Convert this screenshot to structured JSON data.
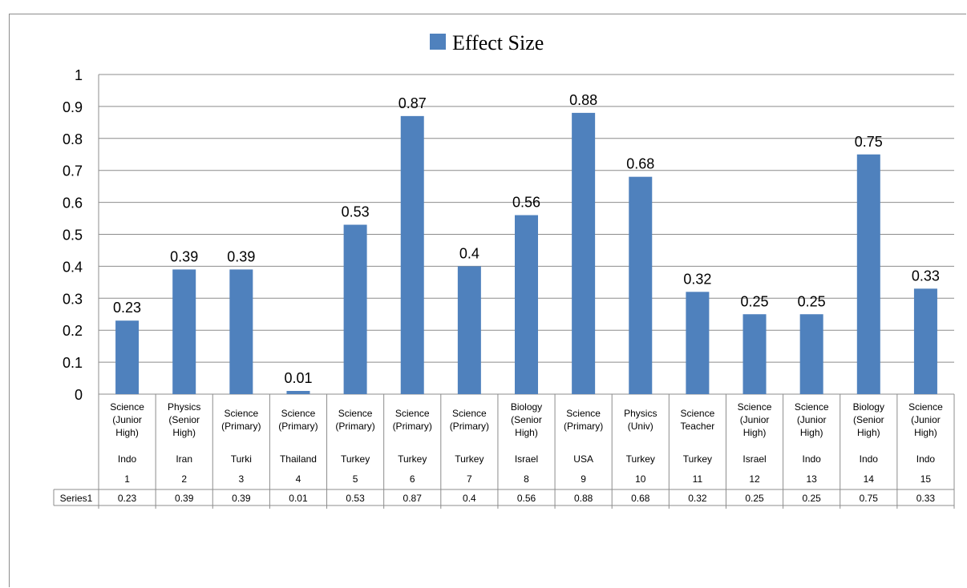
{
  "chart_data": {
    "type": "bar",
    "legend": {
      "position": "top",
      "label": "Effect Size",
      "color": "#4f81bd"
    },
    "series": [
      {
        "name": "Effect Size",
        "table_label": "Series1",
        "values": [
          0.23,
          0.39,
          0.39,
          0.01,
          0.53,
          0.87,
          0.4,
          0.56,
          0.88,
          0.68,
          0.32,
          0.25,
          0.25,
          0.75,
          0.33
        ],
        "value_labels": [
          "0.23",
          "0.39",
          "0.39",
          "0.01",
          "0.53",
          "0.87",
          "0.4",
          "0.56",
          "0.88",
          "0.68",
          "0.32",
          "0.25",
          "0.25",
          "0.75",
          "0.33"
        ]
      }
    ],
    "categories": [
      {
        "subject": [
          "Science",
          "(Junior",
          "High)"
        ],
        "country": "Indo",
        "num": "1"
      },
      {
        "subject": [
          "Physics",
          "(Senior",
          "High)"
        ],
        "country": "Iran",
        "num": "2"
      },
      {
        "subject": [
          "Science",
          "(Primary)"
        ],
        "country": "Turki",
        "num": "3"
      },
      {
        "subject": [
          "Science",
          "(Primary)"
        ],
        "country": "Thailand",
        "num": "4"
      },
      {
        "subject": [
          "Science",
          "(Primary)"
        ],
        "country": "Turkey",
        "num": "5"
      },
      {
        "subject": [
          "Science",
          "(Primary)"
        ],
        "country": "Turkey",
        "num": "6"
      },
      {
        "subject": [
          "Science",
          "(Primary)"
        ],
        "country": "Turkey",
        "num": "7"
      },
      {
        "subject": [
          "Biology",
          "(Senior",
          "High)"
        ],
        "country": "Israel",
        "num": "8"
      },
      {
        "subject": [
          "Science",
          "(Primary)"
        ],
        "country": "USA",
        "num": "9"
      },
      {
        "subject": [
          "Physics",
          "(Univ)"
        ],
        "country": "Turkey",
        "num": "10"
      },
      {
        "subject": [
          "Science",
          "Teacher"
        ],
        "country": "Turkey",
        "num": "11"
      },
      {
        "subject": [
          "Science",
          "(Junior",
          "High)"
        ],
        "country": "Israel",
        "num": "12"
      },
      {
        "subject": [
          "Science",
          "(Junior",
          "High)"
        ],
        "country": "Indo",
        "num": "13"
      },
      {
        "subject": [
          "Biology",
          "(Senior",
          "High)"
        ],
        "country": "Indo",
        "num": "14"
      },
      {
        "subject": [
          "Science",
          "(Junior",
          "High)"
        ],
        "country": "Indo",
        "num": "15"
      }
    ],
    "ylim": [
      0,
      1
    ],
    "yticks": [
      "0",
      "0.1",
      "0.2",
      "0.3",
      "0.4",
      "0.5",
      "0.6",
      "0.7",
      "0.8",
      "0.9",
      "1"
    ],
    "grid": true,
    "data_table": true
  }
}
